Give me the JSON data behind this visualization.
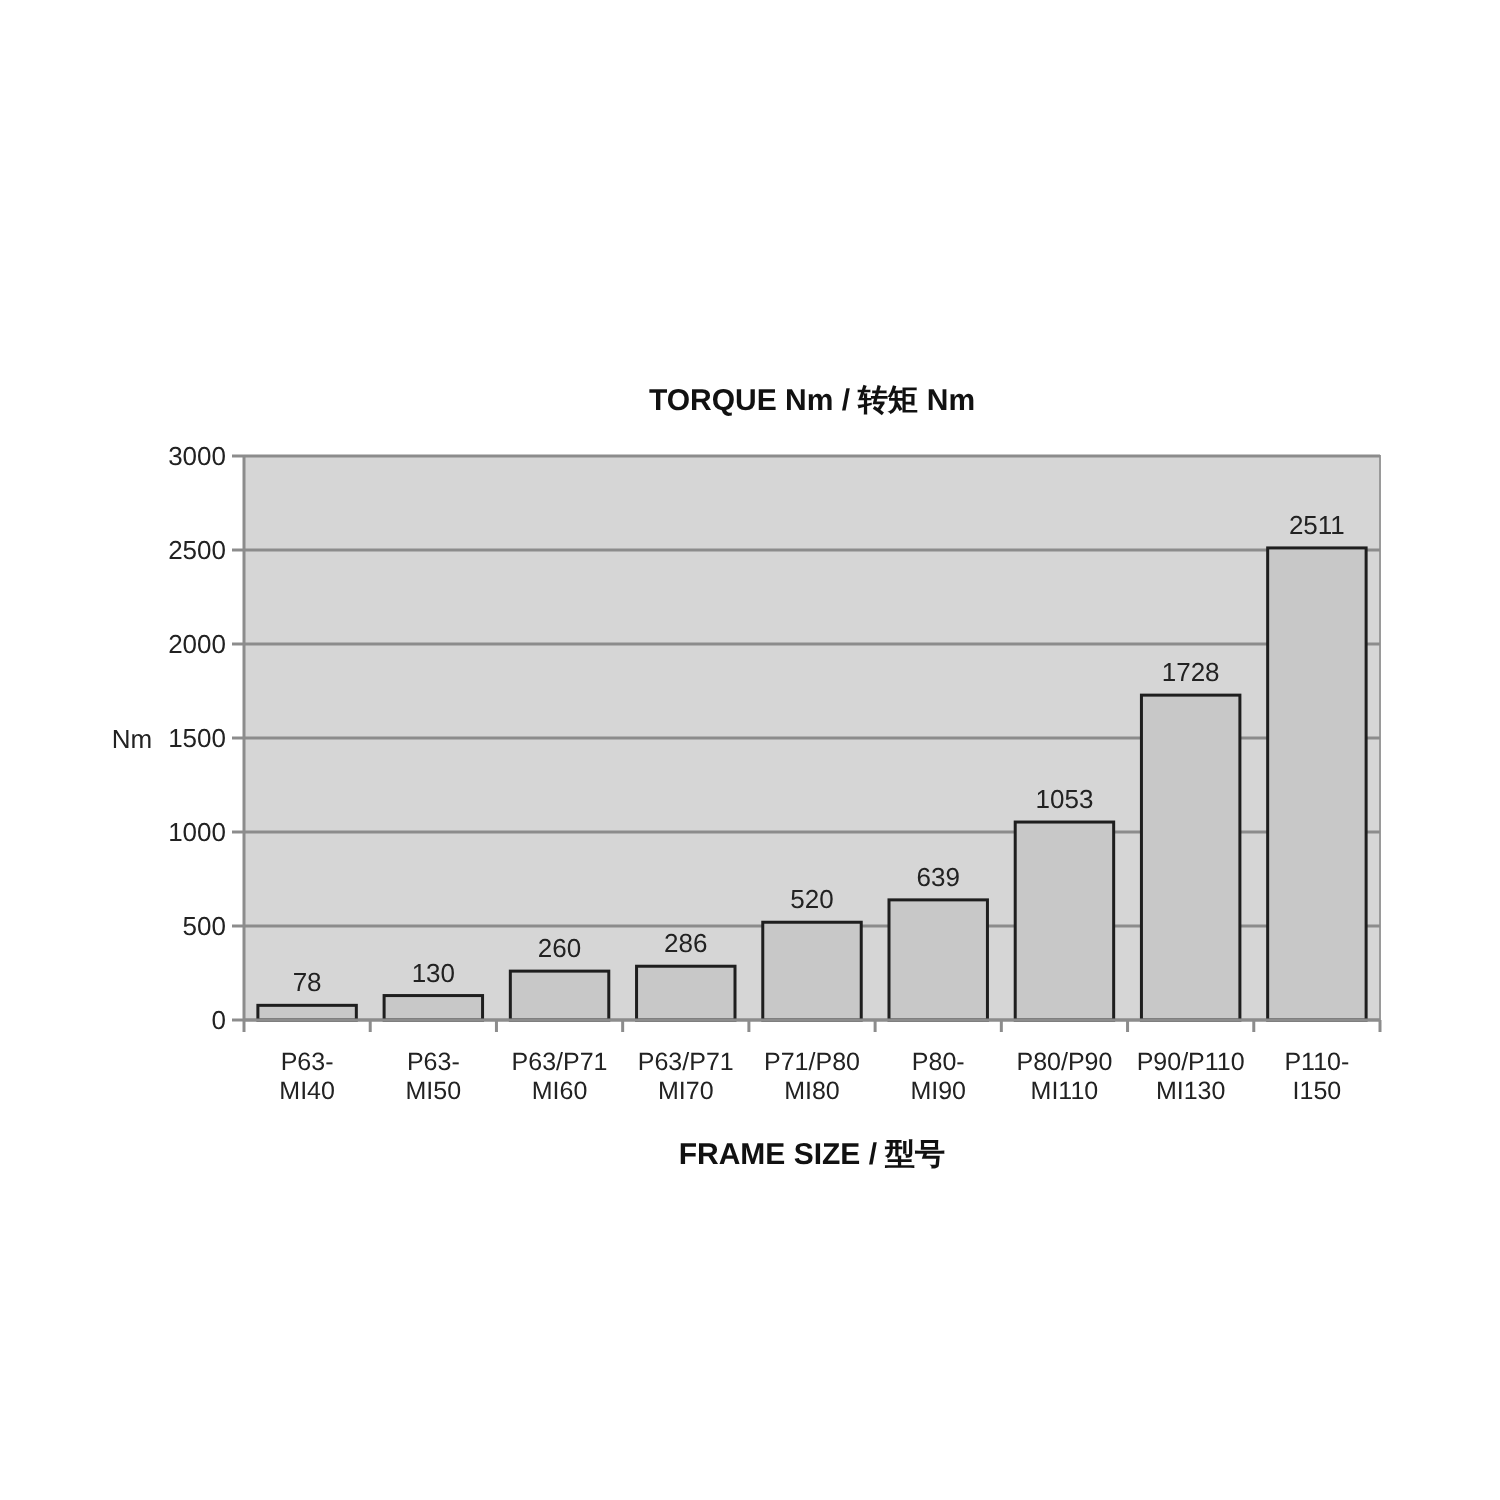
{
  "chart_data": {
    "type": "bar",
    "title": "TORQUE Nm / 转矩 Nm",
    "xlabel": "FRAME SIZE / 型号",
    "ylabel": "Nm",
    "categories": [
      "P63-\nMI40",
      "P63-\nMI50",
      "P63/P71\nMI60",
      "P63/P71\nMI70",
      "P71/P80\nMI80",
      "P80-\nMI90",
      "P80/P90\nMI110",
      "P90/P110\nMI130",
      "P110-\nI150"
    ],
    "values": [
      78,
      130,
      260,
      286,
      520,
      639,
      1053,
      1728,
      2511
    ],
    "color": "#c8c8c8",
    "ylim": [
      0,
      3000
    ],
    "yticks": [
      0,
      500,
      1000,
      1500,
      2000,
      2500,
      3000
    ],
    "grid": "y",
    "data_labels": true
  }
}
